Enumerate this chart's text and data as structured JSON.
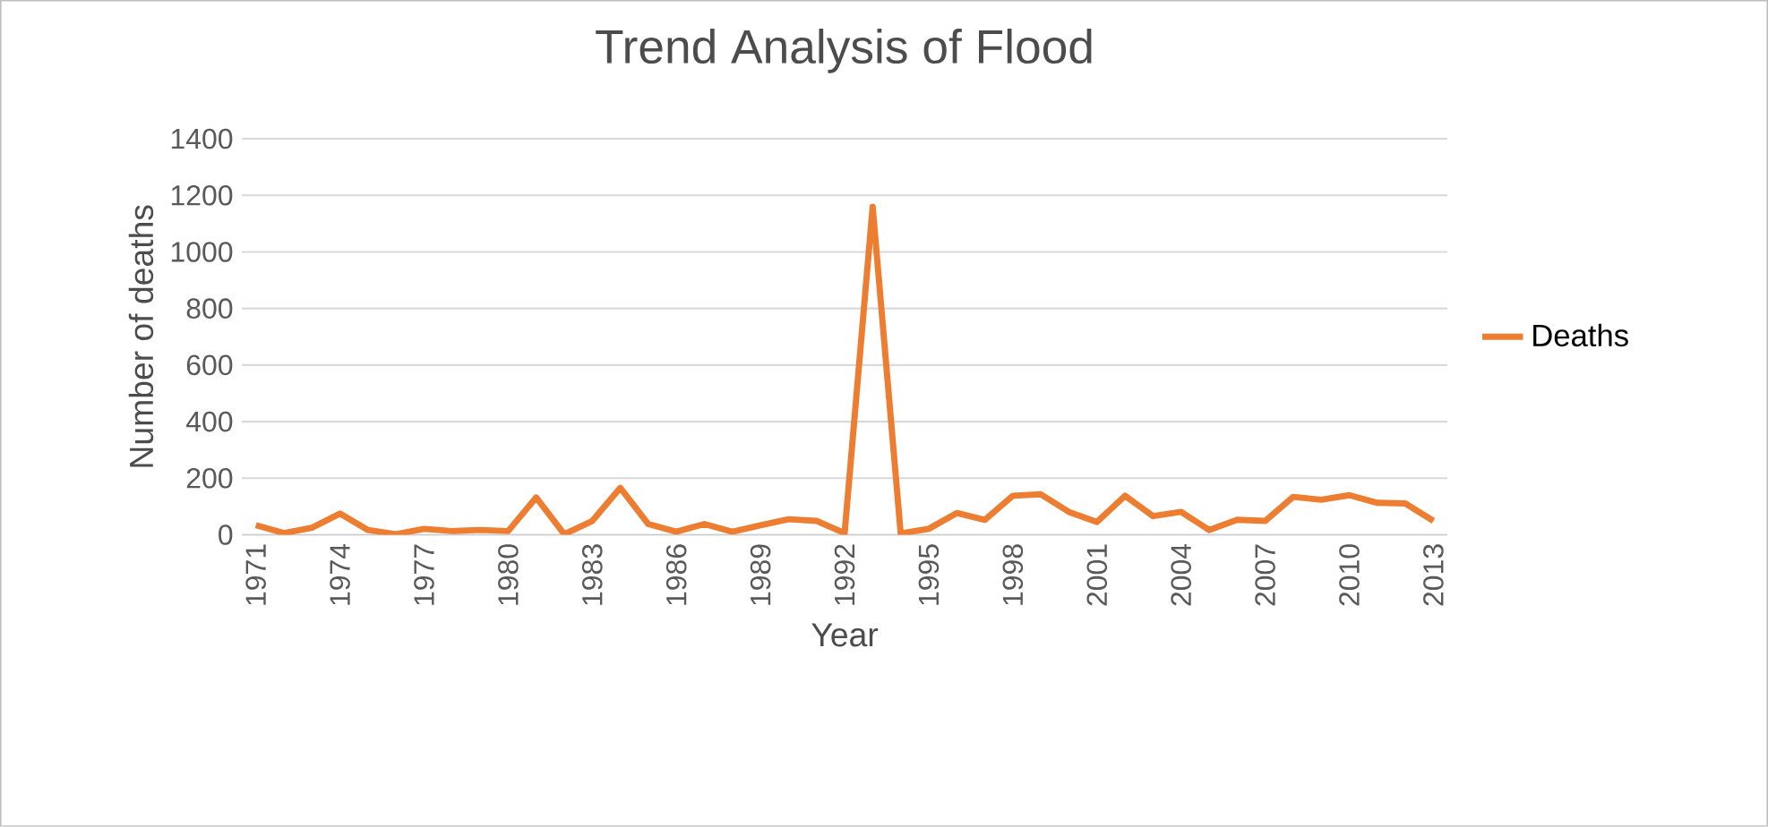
{
  "chart_data": {
    "type": "line",
    "title": "Trend Analysis of Flood",
    "xlabel": "Year",
    "ylabel": "Number of deaths",
    "categories": [
      "1971",
      null,
      null,
      "1974",
      null,
      null,
      "1977",
      null,
      null,
      "1980",
      null,
      null,
      "1983",
      null,
      null,
      "1986",
      null,
      null,
      "1989",
      null,
      null,
      "1992",
      null,
      null,
      "1995",
      null,
      null,
      "1998",
      null,
      null,
      "2001",
      null,
      null,
      "2004",
      null,
      null,
      "2007",
      null,
      null,
      "2010",
      null,
      null,
      "2013"
    ],
    "series": [
      {
        "name": "Deaths",
        "color": "#ed7d31",
        "values": [
          34,
          6,
          25,
          75,
          17,
          2,
          21,
          13,
          17,
          13,
          132,
          2,
          49,
          166,
          38,
          11,
          38,
          11,
          34,
          55,
          49,
          6,
          1160,
          5,
          21,
          77,
          53,
          138,
          143,
          81,
          45,
          138,
          66,
          81,
          17,
          53,
          49,
          134,
          124,
          140,
          113,
          111,
          49
        ]
      }
    ],
    "ylim": [
      0,
      1400
    ],
    "yticks": [
      0,
      200,
      400,
      600,
      800,
      1000,
      1200,
      1400
    ],
    "grid": "y",
    "legend": "right",
    "marker": "none",
    "line_style": "solid"
  }
}
